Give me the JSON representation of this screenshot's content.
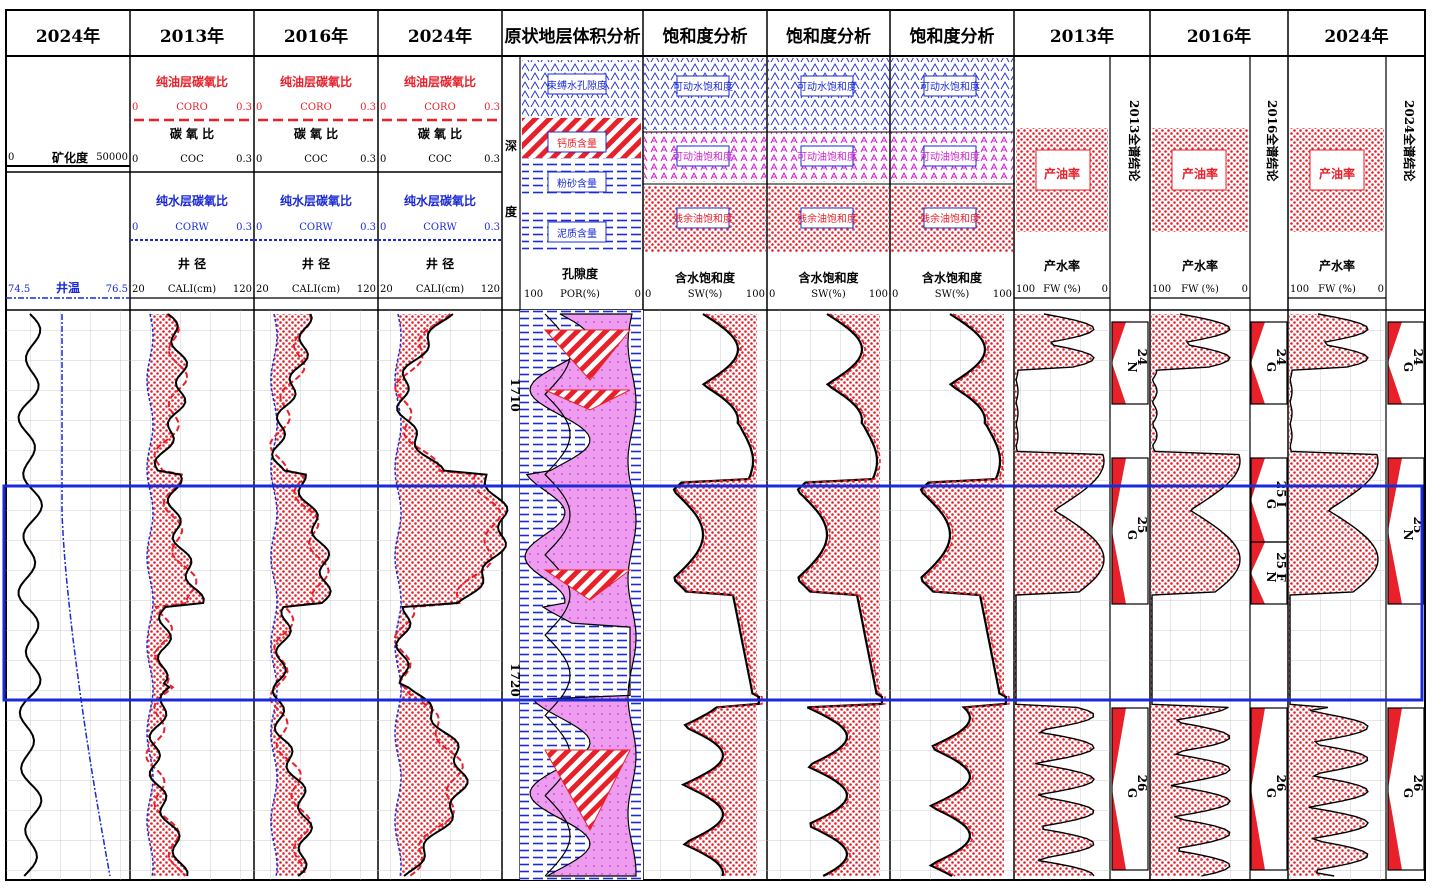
{
  "headers": [
    "2024年",
    "2013年",
    "2016年",
    "2024年",
    "原状地层体积分析",
    "饱和度分析",
    "饱和度分析",
    "饱和度分析",
    "2013年",
    "2016年",
    "2024年"
  ],
  "track1": {
    "salinity_label": "矿化度",
    "salinity_min": "0",
    "salinity_max": "50000",
    "temp_label": "井温",
    "temp_min": "74.5",
    "temp_max": "76.5"
  },
  "co_tracks": {
    "coro_title": "纯油层碳氧比",
    "coro_curve": "CORO",
    "coc_title": "碳 氧 比",
    "coc_curve": "COC",
    "corw_title": "纯水层碳氧比",
    "corw_curve": "CORW",
    "range_min": "0",
    "range_max": "0.3",
    "cali_title": "井 径",
    "cali_curve": "CALI(cm)",
    "cali_min": "20",
    "cali_max": "120"
  },
  "volume": {
    "legend": [
      "束缚水孔隙度",
      "钙质含量",
      "粉砂含量",
      "泥质含量"
    ],
    "depth_label": "深度",
    "porosity_label": "孔隙度",
    "porosity_curve": "POR(%)",
    "por_min": "100",
    "por_max": "0"
  },
  "saturation": {
    "legend": [
      "可动水饱和度",
      "可动油饱和度",
      "残余油饱和度"
    ],
    "label": "含水饱和度",
    "curve": "SW(%)",
    "min": "0",
    "max": "100"
  },
  "production": {
    "oil_rate": "产油率",
    "water_rate": "产水率",
    "curve": "FW (%)",
    "min": "100",
    "max": "0",
    "conclusions": [
      "2013全谱结论",
      "2016全谱结论",
      "2024全谱结论"
    ]
  },
  "depth_marks": [
    "1710",
    "1720"
  ],
  "zones": {
    "col2013": [
      {
        "num": "24",
        "code": "N"
      },
      {
        "num": "25",
        "code": "G"
      },
      {
        "num": "26",
        "code": "G"
      }
    ],
    "col2016": [
      {
        "num": "24",
        "code": "G"
      },
      {
        "num": "25 I",
        "code": "G"
      },
      {
        "num": "25 F",
        "code": "N"
      },
      {
        "num": "26",
        "code": "G"
      }
    ],
    "col2024": [
      {
        "num": "24",
        "code": "G"
      },
      {
        "num": "25",
        "code": "N"
      },
      {
        "num": "26",
        "code": "G"
      }
    ]
  },
  "colors": {
    "red": "#e8202a",
    "blue": "#1a2ad8",
    "magenta": "#e040e0",
    "highlight": "#1a2ad8"
  }
}
